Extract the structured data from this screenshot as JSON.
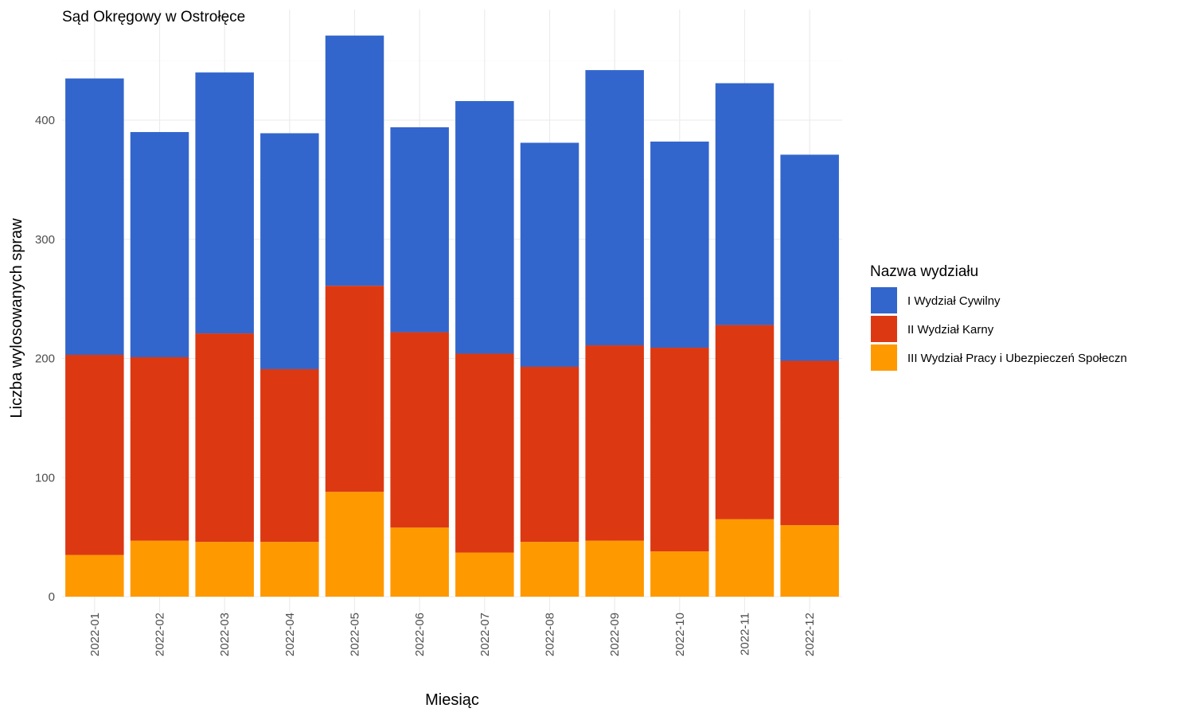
{
  "chart_data": {
    "type": "bar",
    "stacked": true,
    "title": "Sąd Okręgowy w Ostrołęce",
    "xlabel": "Miesiąc",
    "ylabel": "Liczba wylosowanych spraw",
    "ylim": [
      0,
      470
    ],
    "yticks": [
      "0",
      "100",
      "200",
      "300",
      "400"
    ],
    "grid": true,
    "categories": [
      "2022-01",
      "2022-02",
      "2022-03",
      "2022-04",
      "2022-05",
      "2022-06",
      "2022-07",
      "2022-08",
      "2022-09",
      "2022-10",
      "2022-11",
      "2022-12"
    ],
    "series": [
      {
        "name": "I Wydział Cywilny",
        "color": "#3366cc",
        "values": [
          232,
          189,
          219,
          198,
          210,
          172,
          212,
          188,
          231,
          173,
          203,
          173
        ]
      },
      {
        "name": "II Wydział Karny",
        "color": "#dc3912",
        "values": [
          168,
          154,
          175,
          145,
          173,
          164,
          167,
          147,
          164,
          171,
          163,
          138
        ]
      },
      {
        "name": "III Wydział Pracy i Ubezpieczeń Społeczn",
        "color": "#ff9900",
        "values": [
          35,
          47,
          46,
          46,
          88,
          58,
          37,
          46,
          47,
          38,
          65,
          60
        ]
      }
    ],
    "legend": {
      "title": "Nazwa wydziału",
      "position": "right"
    }
  }
}
